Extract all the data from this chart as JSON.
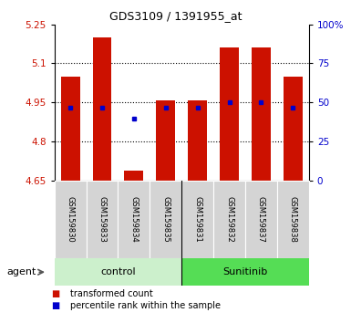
{
  "title": "GDS3109 / 1391955_at",
  "samples": [
    "GSM159830",
    "GSM159833",
    "GSM159834",
    "GSM159835",
    "GSM159831",
    "GSM159832",
    "GSM159837",
    "GSM159838"
  ],
  "group_labels": [
    "control",
    "Sunitinib"
  ],
  "group_colors": [
    "#ccf0cc",
    "#55dd55"
  ],
  "bar_bottom": 4.65,
  "transformed_counts": [
    5.05,
    5.2,
    4.69,
    4.96,
    4.96,
    5.16,
    5.16,
    5.05
  ],
  "percentile_ranks": [
    47,
    47,
    40,
    47,
    47,
    50,
    50,
    47
  ],
  "ylim_left": [
    4.65,
    5.25
  ],
  "ylim_right": [
    0,
    100
  ],
  "yticks_left": [
    4.65,
    4.8,
    4.95,
    5.1,
    5.25
  ],
  "yticks_right": [
    0,
    25,
    50,
    75,
    100
  ],
  "ytick_labels_left": [
    "4.65",
    "4.8",
    "4.95",
    "5.1",
    "5.25"
  ],
  "ytick_labels_right": [
    "0",
    "25",
    "50",
    "75",
    "100%"
  ],
  "grid_yticks": [
    4.8,
    4.95,
    5.1
  ],
  "bar_color": "#cc1100",
  "percentile_color": "#0000cc",
  "bar_width": 0.6,
  "agent_label": "agent",
  "legend_labels": [
    "transformed count",
    "percentile rank within the sample"
  ]
}
